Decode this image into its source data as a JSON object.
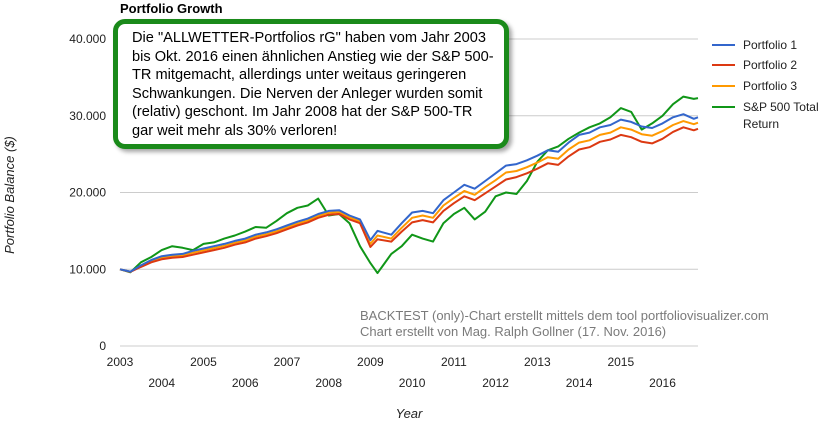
{
  "callout": {
    "text": "Die \"ALLWETTER-Portfolios rG\" haben vom Jahr 2003 bis Okt. 2016 einen ähnlichen Anstieg wie der S&P 500-TR mitgemacht, allerdings unter weitaus geringeren Schwankungen. Die Nerven der Anleger wurden somit (relativ) geschont. Im Jahr 2008 hat der S&P 500-TR gar weit mehr als 30% verloren!"
  },
  "notes": {
    "line1": "BACKTEST (only)-Chart erstellt mittels dem tool portfoliovisualizer.com",
    "line2": "Chart erstellt von Mag. Ralph Gollner (17. Nov. 2016)"
  },
  "chart_data": {
    "type": "line",
    "title": "Portfolio Growth",
    "xlabel": "Year",
    "ylabel": "Portfolio Balance ($)",
    "xlim": [
      2003.0,
      2016.85
    ],
    "ylim": [
      0,
      40000
    ],
    "yticks": [
      0,
      10000,
      20000,
      30000,
      40000
    ],
    "ytick_labels": [
      "0",
      "10.000",
      "20.000",
      "30.000",
      "40.000"
    ],
    "xticks_upper": [
      "2003",
      "2005",
      "2007",
      "2009",
      "2011",
      "2013",
      "2015"
    ],
    "xticks_lower": [
      "2004",
      "2006",
      "2008",
      "2010",
      "2012",
      "2014",
      "2016"
    ],
    "grid": true,
    "legend_position": "top-right",
    "x": [
      2003.0,
      2003.25,
      2003.5,
      2003.75,
      2004.0,
      2004.25,
      2004.5,
      2004.75,
      2005.0,
      2005.25,
      2005.5,
      2005.75,
      2006.0,
      2006.25,
      2006.5,
      2006.75,
      2007.0,
      2007.25,
      2007.5,
      2007.75,
      2008.0,
      2008.25,
      2008.5,
      2008.75,
      2009.0,
      2009.17,
      2009.5,
      2009.75,
      2010.0,
      2010.25,
      2010.5,
      2010.75,
      2011.0,
      2011.25,
      2011.5,
      2011.75,
      2012.0,
      2012.25,
      2012.5,
      2012.75,
      2013.0,
      2013.25,
      2013.5,
      2013.75,
      2014.0,
      2014.25,
      2014.5,
      2014.75,
      2015.0,
      2015.25,
      2015.5,
      2015.75,
      2016.0,
      2016.25,
      2016.5,
      2016.75,
      2016.85
    ],
    "series": [
      {
        "name": "Portfolio 1",
        "color": "#3366cc",
        "values": [
          10000,
          9700,
          10500,
          11200,
          11700,
          11900,
          12000,
          12400,
          12700,
          13000,
          13300,
          13700,
          14000,
          14500,
          14800,
          15200,
          15700,
          16200,
          16600,
          17200,
          17600,
          17700,
          17000,
          16500,
          13800,
          15000,
          14500,
          16000,
          17400,
          17600,
          17300,
          19000,
          20000,
          21000,
          20500,
          21500,
          22500,
          23500,
          23700,
          24200,
          24800,
          25500,
          25300,
          26500,
          27500,
          27800,
          28500,
          28800,
          29500,
          29200,
          28600,
          28400,
          29000,
          29800,
          30200,
          29600,
          29800
        ]
      },
      {
        "name": "Portfolio 2",
        "color": "#dc3912",
        "values": [
          10000,
          9650,
          10300,
          10900,
          11300,
          11500,
          11600,
          11900,
          12200,
          12500,
          12800,
          13200,
          13500,
          14000,
          14300,
          14700,
          15200,
          15700,
          16100,
          16700,
          17100,
          17200,
          16500,
          16000,
          12900,
          13900,
          13600,
          14900,
          16100,
          16400,
          16100,
          17600,
          18600,
          19500,
          19000,
          19900,
          20800,
          21700,
          22000,
          22500,
          23100,
          23800,
          23600,
          24700,
          25600,
          25900,
          26600,
          26900,
          27500,
          27200,
          26600,
          26400,
          27000,
          27900,
          28500,
          28100,
          28300
        ]
      },
      {
        "name": "Portfolio 3",
        "color": "#ff9900",
        "values": [
          10000,
          9680,
          10400,
          11000,
          11500,
          11700,
          11800,
          12150,
          12450,
          12750,
          13050,
          13450,
          13750,
          14250,
          14550,
          14950,
          15450,
          15950,
          16350,
          16950,
          17350,
          17450,
          16750,
          16250,
          13300,
          14400,
          14000,
          15400,
          16700,
          17000,
          16700,
          18300,
          19300,
          20200,
          19700,
          20700,
          21600,
          22600,
          22800,
          23300,
          23900,
          24600,
          24400,
          25600,
          26500,
          26800,
          27500,
          27800,
          28500,
          28200,
          27600,
          27400,
          28000,
          28800,
          29300,
          28900,
          29100
        ]
      },
      {
        "name": "S&P 500 Total Return",
        "color": "#109618",
        "values": [
          10000,
          9600,
          10900,
          11600,
          12500,
          13000,
          12800,
          12500,
          13300,
          13500,
          14000,
          14400,
          14900,
          15500,
          15400,
          16300,
          17300,
          18000,
          18300,
          19200,
          17000,
          17200,
          16000,
          13000,
          10800,
          9500,
          12000,
          13000,
          14500,
          14000,
          13600,
          16000,
          17200,
          18000,
          16500,
          17500,
          19500,
          20000,
          19800,
          21500,
          24000,
          25500,
          26000,
          27000,
          27800,
          28500,
          29000,
          29800,
          31000,
          30500,
          28200,
          29000,
          30000,
          31500,
          32500,
          32200,
          32300
        ]
      }
    ]
  }
}
